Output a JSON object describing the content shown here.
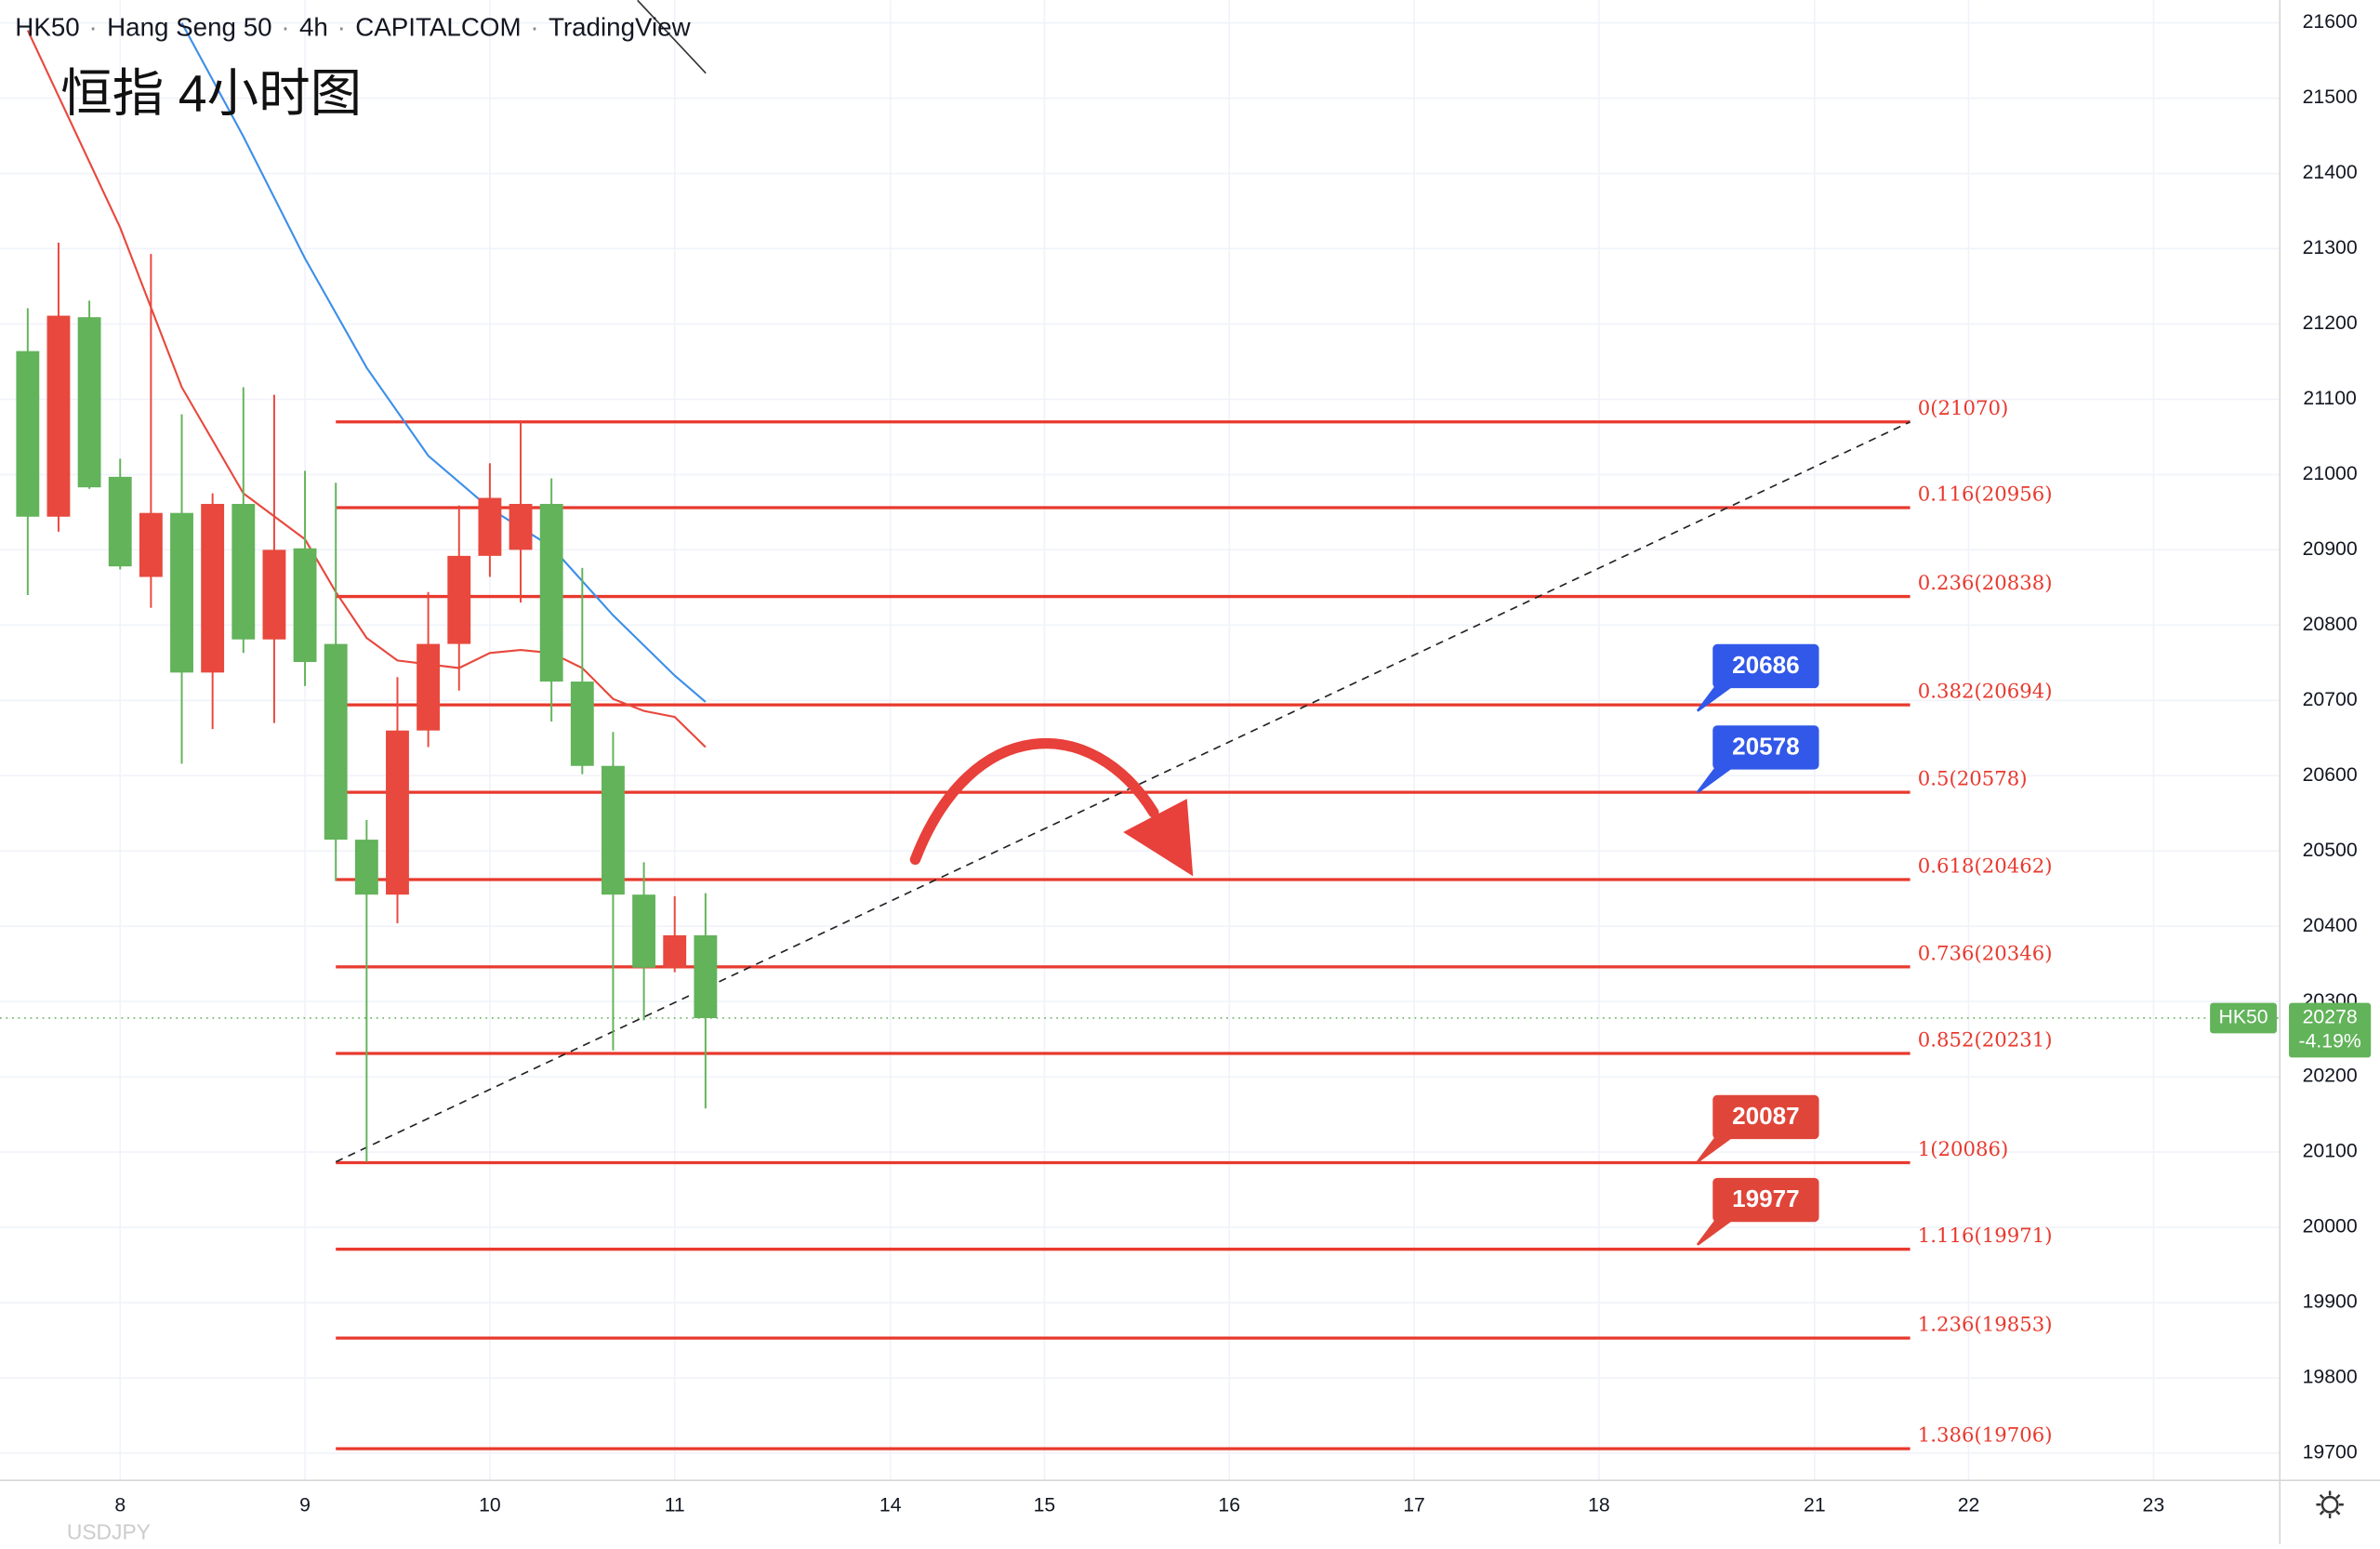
{
  "chart_data": {
    "type": "candlestick",
    "header": [
      "HK50",
      "Hang Seng 50",
      "4h",
      "CAPITALCOM",
      "TradingView"
    ],
    "annotation": "恒指 4小时图",
    "watermark": "USDJPY",
    "symbol": "HK50",
    "up_color": "#e8483d",
    "down_color": "#62b35a",
    "x": [
      0,
      1,
      2,
      3,
      4,
      5,
      6,
      7,
      8,
      9,
      10,
      11,
      12,
      13,
      14,
      15,
      16,
      17,
      18,
      19,
      20,
      21,
      22
    ],
    "open": [
      21164,
      20944,
      21209,
      20997,
      20864,
      20949,
      20737,
      20961,
      20781,
      20902,
      20775,
      20515,
      20442,
      20660,
      20775,
      20892,
      20900,
      20961,
      20725,
      20613,
      20442,
      20345,
      20388
    ],
    "high": [
      21221,
      21308,
      21231,
      21021,
      21293,
      21080,
      20975,
      21116,
      21106,
      21005,
      20989,
      20541,
      20731,
      20844,
      20959,
      21015,
      21072,
      20995,
      20876,
      20658,
      20485,
      20440,
      20444
    ],
    "low": [
      20840,
      20924,
      20981,
      20874,
      20823,
      20616,
      20662,
      20763,
      20670,
      20719,
      20460,
      20087,
      20404,
      20638,
      20713,
      20864,
      20830,
      20672,
      20602,
      20235,
      20275,
      20339,
      20158
    ],
    "close": [
      20944,
      21211,
      20983,
      20878,
      20949,
      20737,
      20961,
      20781,
      20900,
      20751,
      20515,
      20442,
      20660,
      20775,
      20892,
      20969,
      20961,
      20725,
      20613,
      20442,
      20345,
      20388,
      20278
    ],
    "ma_lines": [
      {
        "color": "#e8483d",
        "x": [
          0,
          3,
          5,
          7,
          9,
          10,
          11,
          12,
          14,
          15,
          16,
          17,
          18,
          19,
          20,
          21,
          22
        ],
        "values": [
          21590,
          21328,
          21116,
          20975,
          20914,
          20844,
          20783,
          20753,
          20743,
          20763,
          20767,
          20763,
          20743,
          20702,
          20686,
          20678,
          20638
        ]
      },
      {
        "color": "#3d8fe8",
        "x": [
          5,
          7,
          9,
          11,
          13,
          15,
          17,
          19,
          21,
          22
        ],
        "values": [
          21600,
          21449,
          21287,
          21142,
          21025,
          20955,
          20904,
          20813,
          20733,
          20698
        ]
      }
    ],
    "fib_color": "#e8392e",
    "fib_x": [
      10,
      61.1
    ],
    "fib_levels": [
      {
        "label": "0(21070)",
        "value": 21070
      },
      {
        "label": "0.116(20956)",
        "value": 20956
      },
      {
        "label": "0.236(20838)",
        "value": 20838
      },
      {
        "label": "0.382(20694)",
        "value": 20694
      },
      {
        "label": "0.5(20578)",
        "value": 20578
      },
      {
        "label": "0.618(20462)",
        "value": 20462
      },
      {
        "label": "0.736(20346)",
        "value": 20346
      },
      {
        "label": "0.852(20231)",
        "value": 20231
      },
      {
        "label": "1(20086)",
        "value": 20086
      },
      {
        "label": "1.116(19971)",
        "value": 19971
      },
      {
        "label": "1.236(19853)",
        "value": 19853
      },
      {
        "label": "1.386(19706)",
        "value": 19706
      }
    ],
    "trendline": {
      "x": [
        10,
        61.1
      ],
      "values": [
        20087,
        21070
      ]
    },
    "price_labels": [
      {
        "value": 20686,
        "color": "#3158e8"
      },
      {
        "value": 20578,
        "color": "#3158e8"
      },
      {
        "value": 20087,
        "color": "#e0453a"
      },
      {
        "value": 19977,
        "color": "#e0453a"
      }
    ],
    "price_label_x": 54.2,
    "last_price": 20278,
    "change": {
      "value": -4.19,
      "label": "-4.19%"
    },
    "ylim": [
      19664,
      21630
    ],
    "yticks": [
      19700,
      19800,
      19900,
      20000,
      20100,
      20200,
      20300,
      20400,
      20500,
      20600,
      20700,
      20800,
      20900,
      21000,
      21100,
      21200,
      21300,
      21400,
      21500,
      21600
    ],
    "xlim": [
      -0.9,
      73.1
    ],
    "xticks": [
      {
        "value": 3,
        "label": "8"
      },
      {
        "value": 9,
        "label": "9"
      },
      {
        "value": 15,
        "label": "10"
      },
      {
        "value": 21,
        "label": "11"
      },
      {
        "value": 28,
        "label": "14"
      },
      {
        "value": 33,
        "label": "15"
      },
      {
        "value": 39,
        "label": "16"
      },
      {
        "value": 45,
        "label": "17"
      },
      {
        "value": 51,
        "label": "18"
      },
      {
        "value": 58,
        "label": "21"
      },
      {
        "value": 63,
        "label": "22"
      },
      {
        "value": 69,
        "label": "23"
      }
    ],
    "grid": true
  }
}
